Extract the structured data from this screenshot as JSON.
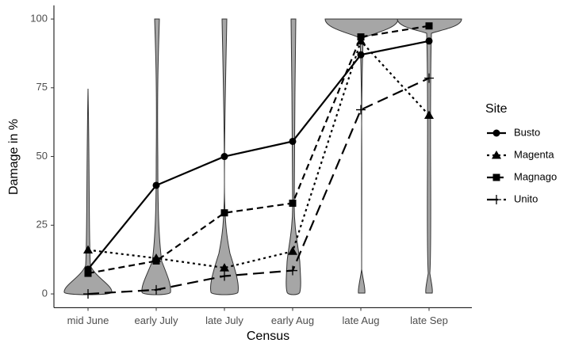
{
  "chart_data": {
    "type": "line",
    "x_label": "Census",
    "y_label": "Damage in %",
    "categories": [
      "mid June",
      "early July",
      "late July",
      "early Aug",
      "late Aug",
      "late Sep"
    ],
    "ylim": [
      -5,
      105
    ],
    "yticks": [
      0,
      25,
      50,
      75,
      100
    ],
    "legend_title": "Site",
    "legend": "right",
    "series": [
      {
        "name": "Busto",
        "color": "#000000",
        "marker": "circle",
        "linestyle": "solid",
        "values": [
          9,
          39.5,
          50,
          55.5,
          87,
          92
        ]
      },
      {
        "name": "Magenta",
        "color": "#000000",
        "marker": "triangle",
        "linestyle": "dotted",
        "values": [
          16,
          13,
          9.5,
          15.5,
          92,
          65
        ]
      },
      {
        "name": "Magnago",
        "color": "#000000",
        "marker": "square",
        "linestyle": "dashed",
        "values": [
          7.5,
          12,
          29.5,
          33,
          93.5,
          97.5
        ]
      },
      {
        "name": "Unito",
        "color": "#000000",
        "marker": "plus",
        "linestyle": "longdash",
        "values": [
          0,
          1.5,
          6.5,
          8.5,
          67,
          78.5
        ]
      }
    ]
  }
}
